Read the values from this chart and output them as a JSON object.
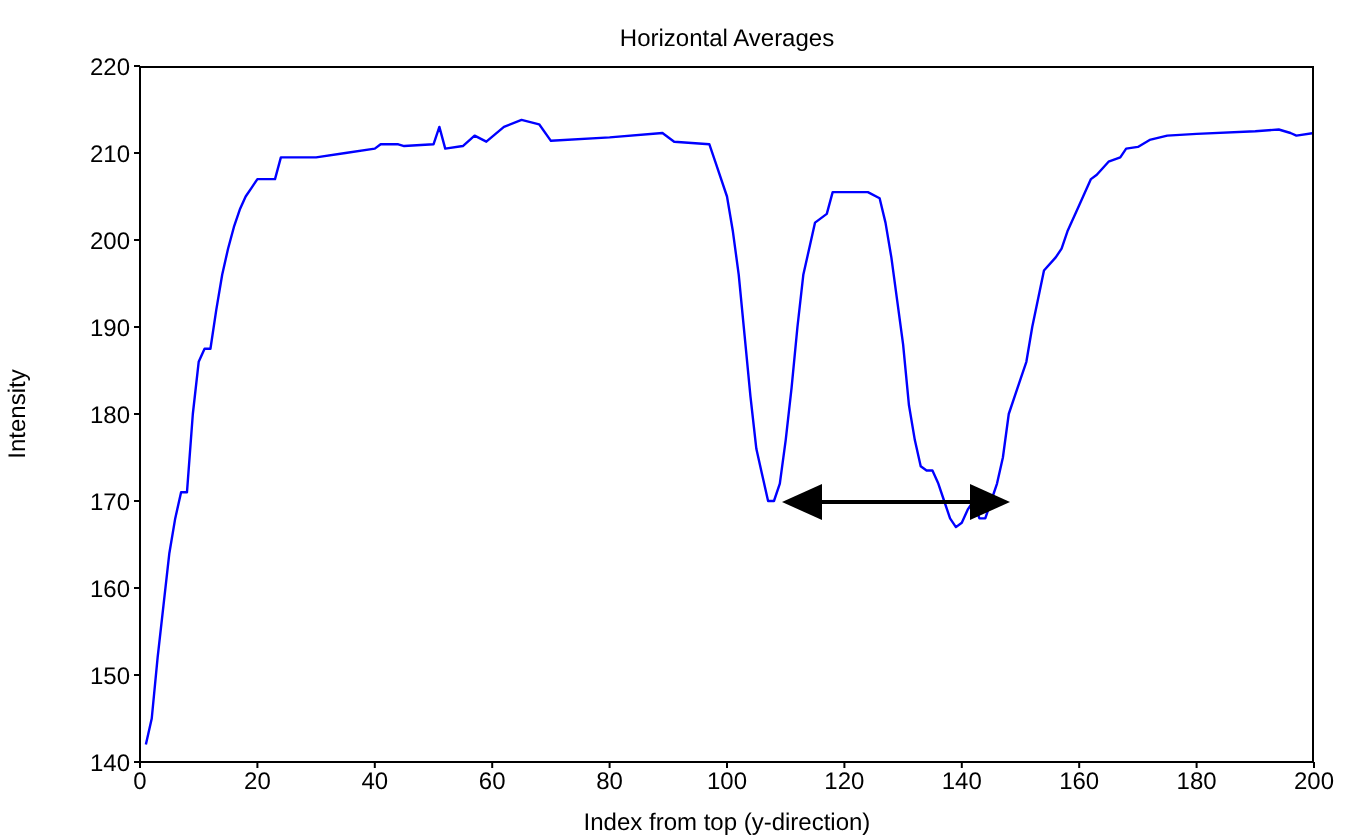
{
  "chart_data": {
    "type": "line",
    "title": "Horizontal Averages",
    "xlabel": "Index from top (y-direction)",
    "ylabel": "Intensity",
    "x": [
      1,
      2,
      3,
      4,
      5,
      6,
      7,
      8,
      9,
      10,
      11,
      12,
      13,
      14,
      15,
      16,
      17,
      18,
      19,
      20,
      23,
      24,
      30,
      35,
      40,
      41,
      44,
      45,
      50,
      51,
      52,
      55,
      57,
      59,
      62,
      65,
      68,
      70,
      80,
      89,
      91,
      97,
      98,
      100,
      101,
      102,
      103,
      104,
      105,
      106,
      107,
      108,
      109,
      110,
      111,
      112,
      113,
      115,
      117,
      118,
      124,
      126,
      127,
      128,
      129,
      130,
      131,
      132,
      133,
      134,
      135,
      136,
      137,
      138,
      139,
      140,
      141,
      142,
      143,
      144,
      145,
      146,
      147,
      148,
      150,
      151,
      152,
      154,
      156,
      157,
      158,
      160,
      162,
      163,
      165,
      167,
      168,
      170,
      172,
      175,
      180,
      190,
      194,
      196,
      197,
      200
    ],
    "series": [
      {
        "color": "#0000ff",
        "values": [
          142,
          145,
          152,
          158,
          164,
          168,
          171,
          171,
          180,
          186,
          187.5,
          187.5,
          192,
          196,
          199,
          201.5,
          203.5,
          205,
          206,
          207,
          207,
          209.5,
          209.5,
          210,
          210.5,
          211,
          211,
          210.8,
          211,
          213,
          210.5,
          210.8,
          212,
          211.3,
          213,
          213.8,
          213.3,
          211.4,
          211.8,
          212.3,
          211.3,
          211,
          209,
          205,
          201,
          196,
          189,
          182,
          176,
          173,
          170,
          170,
          172,
          177,
          183,
          190,
          196,
          202,
          203,
          205.5,
          205.5,
          204.8,
          202,
          198,
          193,
          188,
          181,
          177,
          174,
          173.5,
          173.5,
          172,
          170,
          168,
          167,
          167.5,
          169,
          170,
          168,
          168,
          170,
          172,
          175,
          180,
          184,
          186,
          190,
          196.5,
          198,
          199,
          201,
          204,
          207,
          207.5,
          209,
          209.5,
          210.5,
          210.7,
          211.5,
          212,
          212.2,
          212.5,
          212.7,
          212.3,
          212,
          212.3
        ]
      }
    ],
    "xlim": [
      0,
      200
    ],
    "xticks": [
      0,
      20,
      40,
      60,
      80,
      100,
      120,
      140,
      160,
      180,
      200
    ],
    "ylim": [
      140,
      220
    ],
    "yticks": [
      140,
      150,
      160,
      170,
      180,
      190,
      200,
      210,
      220
    ],
    "grid": false,
    "legend": false,
    "marker": "none",
    "line_style": "solid"
  }
}
